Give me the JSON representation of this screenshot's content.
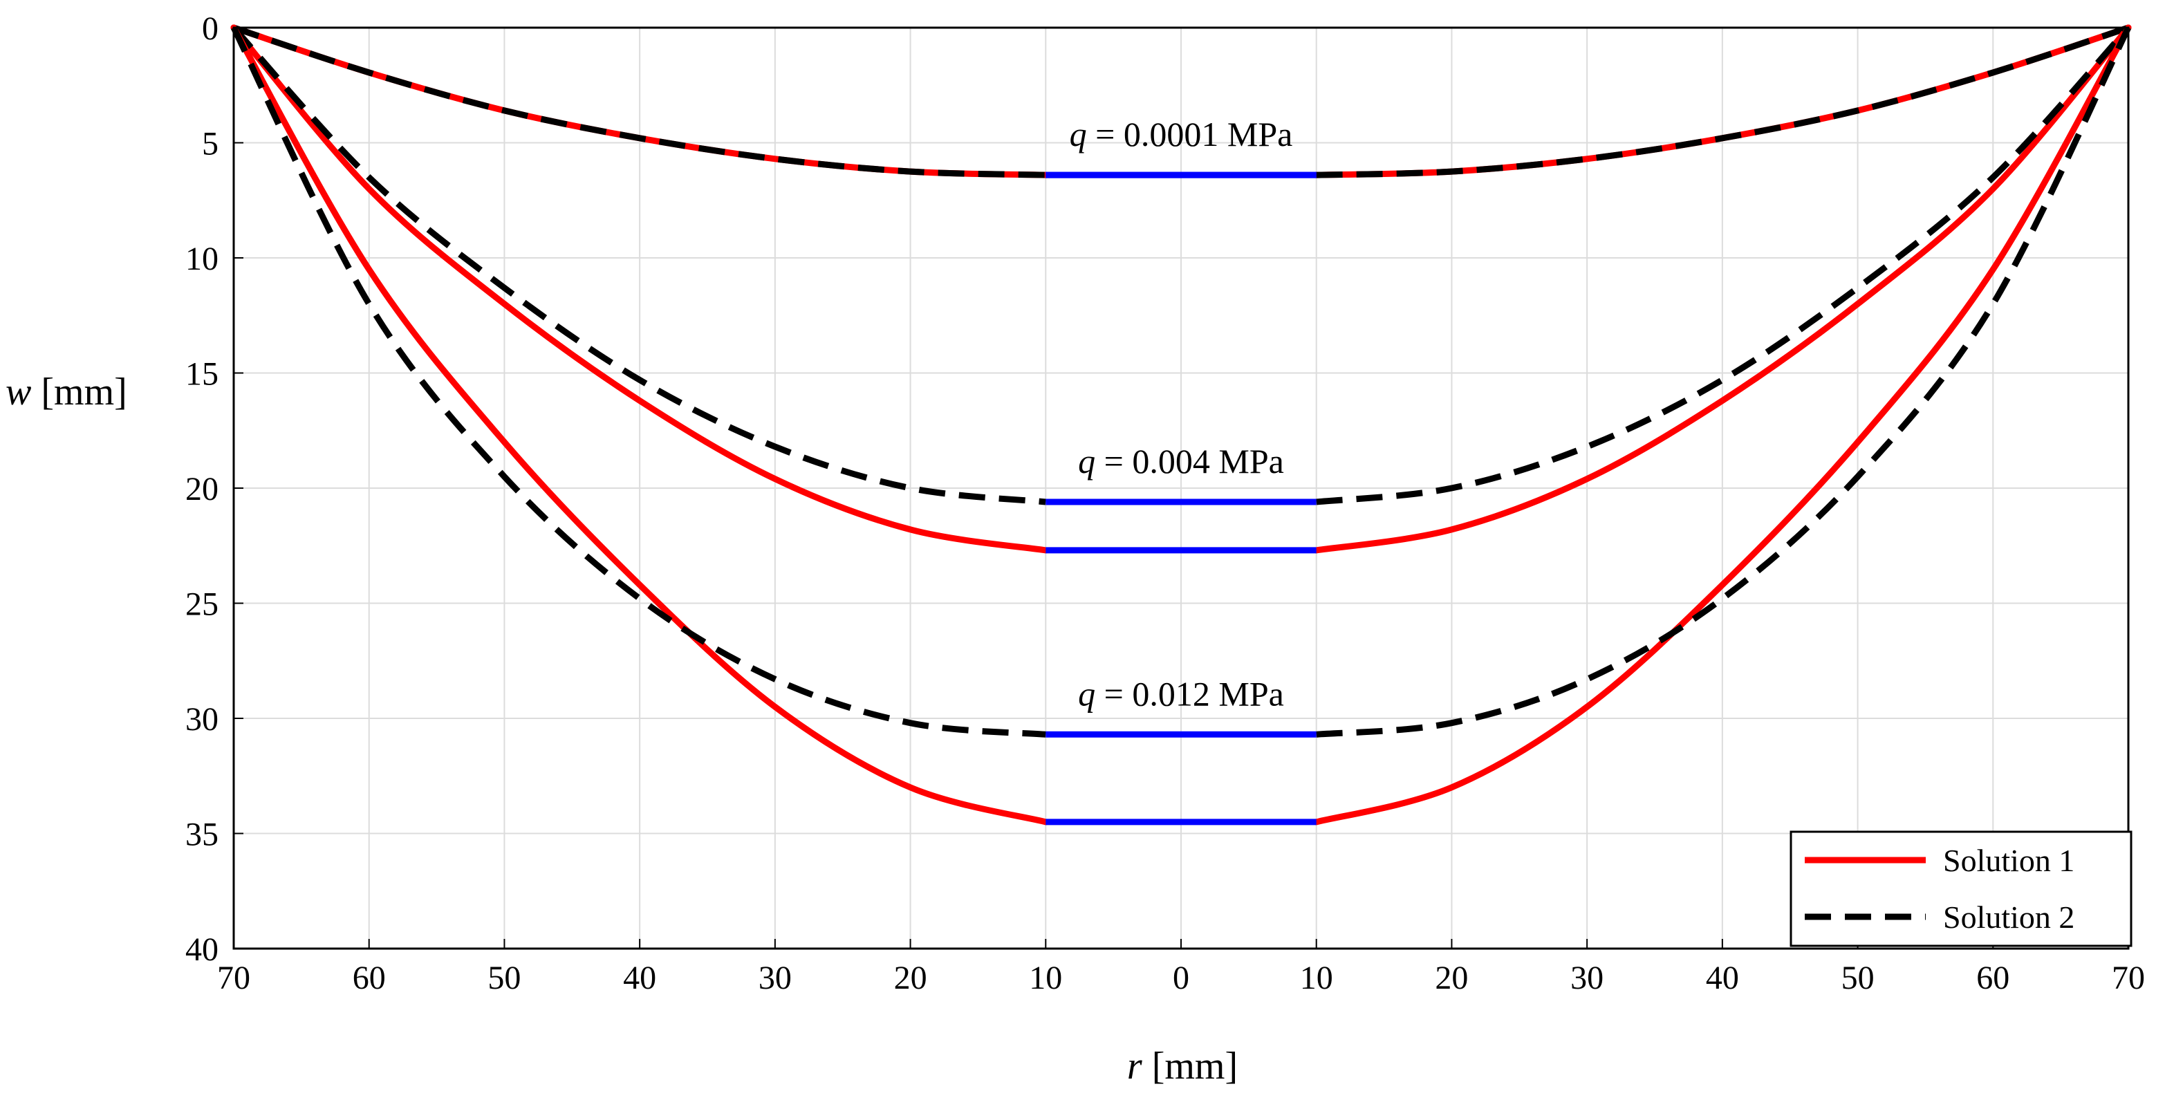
{
  "chart_data": {
    "type": "line",
    "title": "",
    "xlabel": {
      "var": "r",
      "unit": " [mm]"
    },
    "ylabel": {
      "var": "w",
      "unit": " [mm]"
    },
    "x_domain": [
      -70,
      70
    ],
    "ylim": [
      0,
      40
    ],
    "y_direction": "downward",
    "x_ticks": [
      {
        "value": -70,
        "label": "70"
      },
      {
        "value": -60,
        "label": "60"
      },
      {
        "value": -50,
        "label": "50"
      },
      {
        "value": -40,
        "label": "40"
      },
      {
        "value": -30,
        "label": "30"
      },
      {
        "value": -20,
        "label": "20"
      },
      {
        "value": -10,
        "label": "10"
      },
      {
        "value": 0,
        "label": "0"
      },
      {
        "value": 10,
        "label": "10"
      },
      {
        "value": 20,
        "label": "20"
      },
      {
        "value": 30,
        "label": "30"
      },
      {
        "value": 40,
        "label": "40"
      },
      {
        "value": 50,
        "label": "50"
      },
      {
        "value": 60,
        "label": "60"
      },
      {
        "value": 70,
        "label": "70"
      }
    ],
    "y_ticks": [
      {
        "value": 0,
        "label": "0"
      },
      {
        "value": 5,
        "label": "5"
      },
      {
        "value": 10,
        "label": "10"
      },
      {
        "value": 15,
        "label": "15"
      },
      {
        "value": 20,
        "label": "20"
      },
      {
        "value": 25,
        "label": "25"
      },
      {
        "value": 30,
        "label": "30"
      },
      {
        "value": 35,
        "label": "35"
      },
      {
        "value": 40,
        "label": "40"
      }
    ],
    "grid": true,
    "flat_center": {
      "range": [
        -10,
        10
      ],
      "color": "#0000ff"
    },
    "series": [
      {
        "name": "Solution 1",
        "load": "0.0001",
        "color": "#ff0000",
        "dash": "solid",
        "x": [
          -70,
          -60,
          -50,
          -40,
          -30,
          -20,
          -10,
          10,
          20,
          30,
          40,
          50,
          60,
          70
        ],
        "y": [
          0,
          1.95,
          3.6,
          4.8,
          5.7,
          6.25,
          6.4,
          6.4,
          6.25,
          5.7,
          4.8,
          3.6,
          1.95,
          0
        ]
      },
      {
        "name": "Solution 2",
        "load": "0.0001",
        "color": "#000000",
        "dash": "dashed",
        "x": [
          -70,
          -60,
          -50,
          -40,
          -30,
          -20,
          -10,
          10,
          20,
          30,
          40,
          50,
          60,
          70
        ],
        "y": [
          0,
          1.95,
          3.6,
          4.8,
          5.7,
          6.25,
          6.4,
          6.4,
          6.25,
          5.7,
          4.8,
          3.6,
          1.95,
          0
        ]
      },
      {
        "name": "Solution 1",
        "load": "0.004",
        "color": "#ff0000",
        "dash": "solid",
        "x": [
          -70,
          -60,
          -50,
          -40,
          -30,
          -20,
          -10,
          10,
          20,
          30,
          40,
          50,
          60,
          70
        ],
        "y": [
          0,
          7.0,
          12.0,
          16.2,
          19.6,
          21.8,
          22.7,
          22.7,
          21.8,
          19.6,
          16.2,
          12.0,
          7.0,
          0
        ]
      },
      {
        "name": "Solution 2",
        "load": "0.004",
        "color": "#000000",
        "dash": "dashed",
        "x": [
          -70,
          -60,
          -50,
          -40,
          -30,
          -20,
          -10,
          10,
          20,
          30,
          40,
          50,
          60,
          70
        ],
        "y": [
          0,
          6.5,
          11.3,
          15.3,
          18.2,
          20.0,
          20.6,
          20.6,
          20.0,
          18.2,
          15.3,
          11.3,
          6.5,
          0
        ]
      },
      {
        "name": "Solution 1",
        "load": "0.012",
        "color": "#ff0000",
        "dash": "solid",
        "x": [
          -70,
          -60,
          -50,
          -40,
          -30,
          -20,
          -10,
          10,
          20,
          30,
          40,
          50,
          60,
          70
        ],
        "y": [
          0,
          10.5,
          18.0,
          24.2,
          29.5,
          33.0,
          34.5,
          34.5,
          33.0,
          29.5,
          24.2,
          18.0,
          10.5,
          0
        ]
      },
      {
        "name": "Solution 2",
        "load": "0.012",
        "color": "#000000",
        "dash": "dashed",
        "x": [
          -70,
          -60,
          -50,
          -40,
          -30,
          -20,
          -10,
          10,
          20,
          30,
          40,
          50,
          60,
          70
        ],
        "y": [
          0,
          12.0,
          19.5,
          24.8,
          28.3,
          30.2,
          30.7,
          30.7,
          30.2,
          28.3,
          24.8,
          19.5,
          12.0,
          0
        ]
      }
    ],
    "annotations": [
      {
        "var": "q",
        "text": " = 0.0001 MPa",
        "x": 0,
        "y": 4.6
      },
      {
        "var": "q",
        "text": " = 0.004 MPa",
        "x": 0,
        "y": 18.8
      },
      {
        "var": "q",
        "text": " = 0.012 MPa",
        "x": 0,
        "y": 28.9
      }
    ],
    "legend": {
      "position": "bottom-right",
      "entries": [
        {
          "label": "Solution 1",
          "color": "#ff0000",
          "dash": "solid"
        },
        {
          "label": "Solution 2",
          "color": "#000000",
          "dash": "dashed"
        }
      ]
    }
  }
}
